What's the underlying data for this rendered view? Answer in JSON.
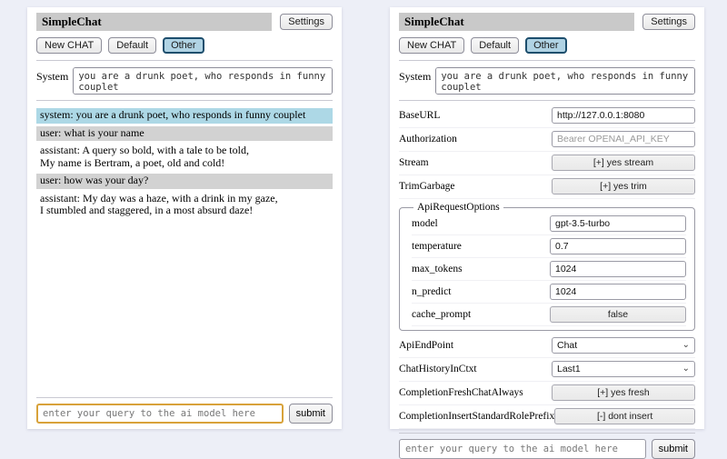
{
  "app": {
    "title": "SimpleChat",
    "settings_button": "Settings",
    "new_chat_button": "New CHAT",
    "session_default": "Default",
    "session_other": "Other"
  },
  "system_prompt": {
    "label": "System",
    "value": "you are a drunk poet, who responds in funny couplet"
  },
  "chat": {
    "messages": [
      {
        "role": "system",
        "text": "system: you are a drunk poet, who responds in funny couplet"
      },
      {
        "role": "user",
        "text": "user: what is your name"
      },
      {
        "role": "assistant",
        "text": "assistant: A query so bold, with a tale to be told,\nMy name is Bertram, a poet, old and cold!"
      },
      {
        "role": "user",
        "text": "user: how was your day?"
      },
      {
        "role": "assistant",
        "text": "assistant: My day was a haze, with a drink in my gaze,\nI stumbled and staggered, in a most absurd daze!"
      }
    ]
  },
  "query": {
    "placeholder": "enter your query to the ai model here",
    "submit_button": "submit"
  },
  "settings": {
    "base_url": {
      "label": "BaseURL",
      "value": "http://127.0.0.1:8080"
    },
    "authorization": {
      "label": "Authorization",
      "placeholder": "Bearer OPENAI_API_KEY"
    },
    "stream": {
      "label": "Stream",
      "button": "[+] yes stream"
    },
    "trim_garbage": {
      "label": "TrimGarbage",
      "button": "[+] yes trim"
    },
    "api_request_options": {
      "legend": "ApiRequestOptions",
      "model": {
        "label": "model",
        "value": "gpt-3.5-turbo"
      },
      "temperature": {
        "label": "temperature",
        "value": "0.7"
      },
      "max_tokens": {
        "label": "max_tokens",
        "value": "1024"
      },
      "n_predict": {
        "label": "n_predict",
        "value": "1024"
      },
      "cache_prompt": {
        "label": "cache_prompt",
        "button": "false"
      }
    },
    "api_endpoint": {
      "label": "ApiEndPoint",
      "value": "Chat"
    },
    "chat_history_in_ctxt": {
      "label": "ChatHistoryInCtxt",
      "value": "Last1"
    },
    "completion_fresh_chat_always": {
      "label": "CompletionFreshChatAlways",
      "button": "[+] yes fresh"
    },
    "completion_insert_standard_role_prefix": {
      "label": "CompletionInsertStandardRolePrefix",
      "button": "[-] dont insert"
    }
  },
  "icons": {
    "select_chevron": "chevron-down-icon"
  },
  "colors": {
    "page_background": "#edeff7",
    "title_bar": "#c9c9c9",
    "system_message_bg": "#add8e6",
    "user_message_bg": "#d2d2d2",
    "active_session_bg": "#b0d3e4",
    "active_session_border": "#1d4e6d",
    "focused_input_border": "#d8a23a"
  }
}
